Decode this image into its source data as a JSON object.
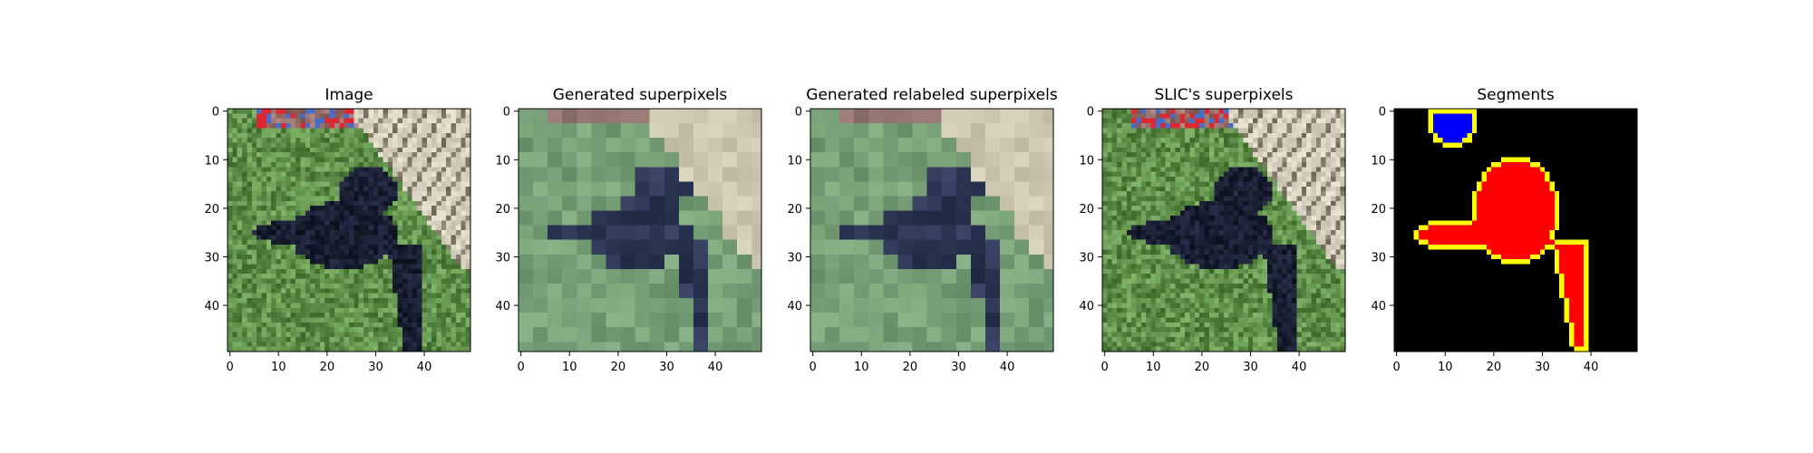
{
  "figure": {
    "panels": [
      {
        "title": "Image",
        "style": "photo"
      },
      {
        "title": "Generated superpixels",
        "style": "superpixel"
      },
      {
        "title": "Generated relabeled superpixels",
        "style": "superpixel"
      },
      {
        "title": "SLIC's superpixels",
        "style": "photo"
      },
      {
        "title": "Segments",
        "style": "segments"
      }
    ],
    "axis": {
      "x_ticks": [
        "0",
        "10",
        "20",
        "30",
        "40"
      ],
      "y_ticks": [
        "0",
        "10",
        "20",
        "30",
        "40"
      ],
      "grid_size": 50
    },
    "colors": {
      "grass": "#5f8f4a",
      "dog": "#1a1f33",
      "fence": "#d9d2c0",
      "segment_background": "#000000",
      "segment_red": "#ff0000",
      "segment_blue": "#0000ff",
      "segment_border": "#ffff00"
    }
  }
}
